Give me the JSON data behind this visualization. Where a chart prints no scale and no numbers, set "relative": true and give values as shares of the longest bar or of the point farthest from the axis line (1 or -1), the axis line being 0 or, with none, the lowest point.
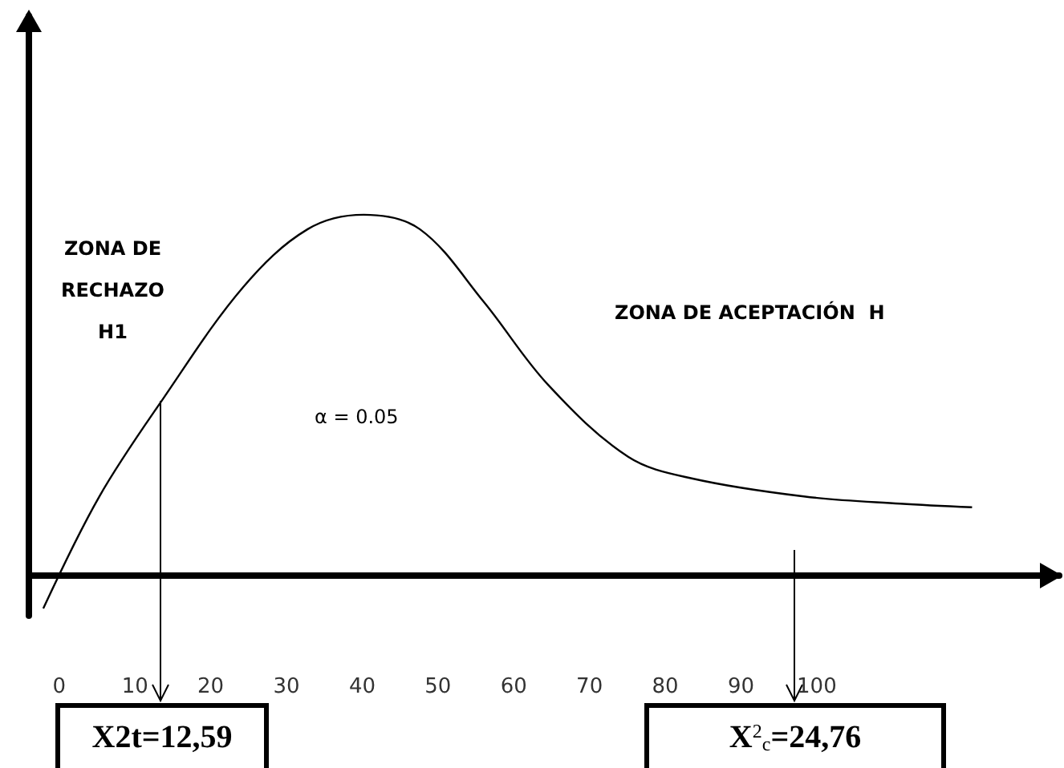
{
  "chart_data": {
    "type": "line",
    "relative": true,
    "color": "#000000",
    "marker": "none",
    "grid": false,
    "x": [
      -2.1,
      5.3,
      13.7,
      24.3,
      32.8,
      40.2,
      47.6,
      56.0,
      64.5,
      75.1,
      83.5,
      98.3,
      111,
      120.5
    ],
    "values": [
      -0.09,
      0.22,
      0.49,
      0.8,
      0.96,
      1.0,
      0.96,
      0.76,
      0.53,
      0.33,
      0.27,
      0.22,
      0.2,
      0.19
    ],
    "xlim": [
      -4,
      132
    ],
    "xticks": [
      0,
      10,
      20,
      30,
      40,
      50,
      60,
      70,
      80,
      90,
      100
    ],
    "annotations": [
      "ZONA DE\nRECHAZO\nH1",
      "ZONA DE ACEPTACIÓN  H",
      "α = 0.05",
      "X2t=12,59",
      "X$^{2}$$_{c}$=24,76"
    ]
  }
}
